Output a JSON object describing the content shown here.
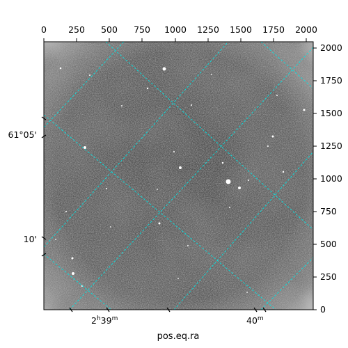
{
  "image": {
    "description_colormap": "grayscale",
    "grid_color": "#00e5e5",
    "background_color": "#ffffff"
  },
  "axes": {
    "xlabel": "pos.eq.ra",
    "top_ticks": [
      "0",
      "250",
      "500",
      "750",
      "1000",
      "1250",
      "1500",
      "1750",
      "2000"
    ],
    "right_ticks": [
      "0",
      "250",
      "500",
      "750",
      "1000",
      "1250",
      "1500",
      "1750",
      "2000"
    ],
    "bottom_ticks": [
      {
        "hour": "2",
        "h": "h",
        "min": "39",
        "m": "m"
      },
      {
        "hour": "",
        "h": "",
        "min": "40",
        "m": "m"
      }
    ],
    "left_ticks": [
      "61°05'",
      "10'"
    ]
  }
}
